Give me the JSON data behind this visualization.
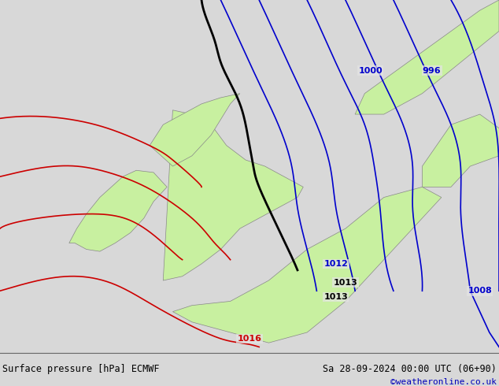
{
  "title_left": "Surface pressure [hPa] ECMWF",
  "title_right": "Sa 28-09-2024 00:00 UTC (06+90)",
  "credit": "©weatheronline.co.uk",
  "bg_color": "#e4e4e4",
  "land_color": "#c8f0a0",
  "border_color": "#888888",
  "isobar_blue": "#0000cc",
  "isobar_black": "#000000",
  "isobar_red": "#cc0000",
  "label_blue": "#0000cc",
  "label_red": "#cc0000",
  "label_black": "#000000",
  "bottom_bg": "#d8d8d8",
  "credit_color": "#0000bb"
}
